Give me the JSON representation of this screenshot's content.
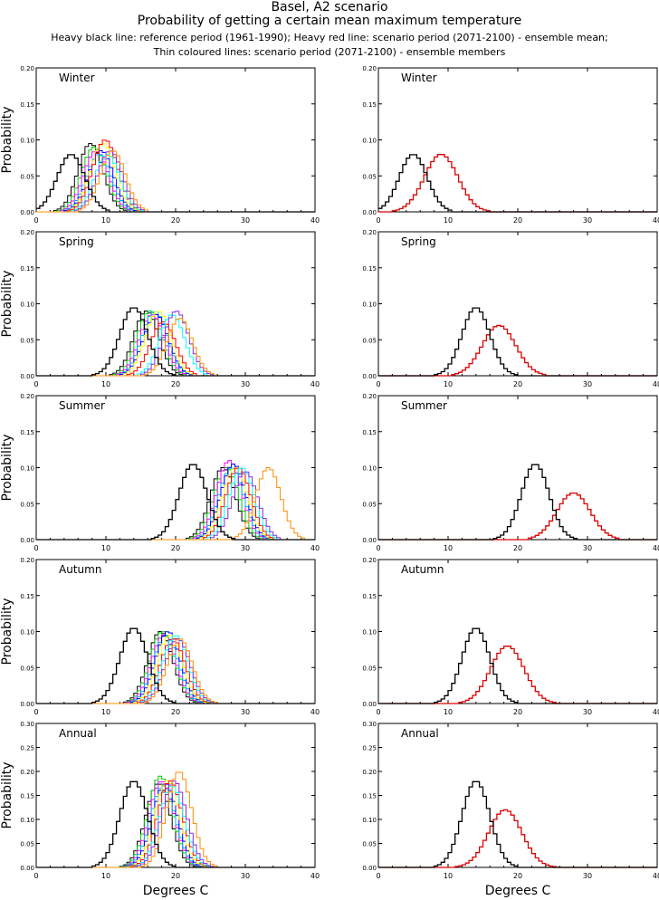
{
  "header": {
    "title": "Basel, A2 scenario",
    "subtitle": "Probability of getting a certain mean maximum temperature",
    "legend_line1": "Heavy black line: reference period (1961-1990); Heavy red line: scenario period (2071-2100) - ensemble mean;",
    "legend_line2": "Thin coloured lines: scenario period (2071-2100) - ensemble members"
  },
  "colors": {
    "reference": "#000000",
    "ensemble_mean": "#dd0000",
    "members": [
      "#000000",
      "#00cc00",
      "#ff00ff",
      "#00b0ff",
      "#0000ff",
      "#ffff00",
      "#ff0000",
      "#00ffff",
      "#8a2be2",
      "#ff8c00"
    ]
  },
  "chart_data": [
    {
      "type": "line",
      "panel": "ensemble members",
      "season": "Winter",
      "ylabel": "Probability",
      "xlim": [
        0,
        40
      ],
      "ylim": [
        0,
        0.2
      ],
      "reference_mean": 5.0,
      "reference_peak": 0.08,
      "scenario_mean": 9.0,
      "scenario_peak": 0.08,
      "members": [
        {
          "mean": 7.8,
          "peak": 0.095
        },
        {
          "mean": 8.3,
          "peak": 0.09
        },
        {
          "mean": 8.6,
          "peak": 0.085
        },
        {
          "mean": 9.0,
          "peak": 0.08
        },
        {
          "mean": 9.3,
          "peak": 0.085
        },
        {
          "mean": 9.6,
          "peak": 0.095
        },
        {
          "mean": 9.9,
          "peak": 0.1
        },
        {
          "mean": 10.2,
          "peak": 0.08
        },
        {
          "mean": 10.6,
          "peak": 0.085
        },
        {
          "mean": 11.0,
          "peak": 0.085
        }
      ]
    },
    {
      "type": "line",
      "panel": "ensemble mean",
      "season": "Winter",
      "ylabel": "",
      "xlim": [
        0,
        40
      ],
      "ylim": [
        0,
        0.2
      ],
      "reference_mean": 5.0,
      "reference_peak": 0.08,
      "scenario_mean": 9.0,
      "scenario_peak": 0.08
    },
    {
      "type": "line",
      "panel": "ensemble members",
      "season": "Spring",
      "ylabel": "Probability",
      "xlim": [
        0,
        40
      ],
      "ylim": [
        0,
        0.2
      ],
      "reference_mean": 14.0,
      "reference_peak": 0.095,
      "scenario_mean": 17.3,
      "scenario_peak": 0.07,
      "members": [
        {
          "mean": 15.8,
          "peak": 0.09
        },
        {
          "mean": 16.3,
          "peak": 0.09
        },
        {
          "mean": 16.6,
          "peak": 0.085
        },
        {
          "mean": 17.0,
          "peak": 0.09
        },
        {
          "mean": 17.2,
          "peak": 0.085
        },
        {
          "mean": 17.5,
          "peak": 0.09
        },
        {
          "mean": 18.2,
          "peak": 0.075
        },
        {
          "mean": 19.5,
          "peak": 0.085
        },
        {
          "mean": 20.1,
          "peak": 0.09
        },
        {
          "mean": 20.6,
          "peak": 0.08
        }
      ]
    },
    {
      "type": "line",
      "panel": "ensemble mean",
      "season": "Spring",
      "ylabel": "",
      "xlim": [
        0,
        40
      ],
      "ylim": [
        0,
        0.2
      ],
      "reference_mean": 14.0,
      "reference_peak": 0.095,
      "scenario_mean": 17.3,
      "scenario_peak": 0.07
    },
    {
      "type": "line",
      "panel": "ensemble members",
      "season": "Summer",
      "ylabel": "Probability",
      "xlim": [
        0,
        40
      ],
      "ylim": [
        0,
        0.2
      ],
      "reference_mean": 22.5,
      "reference_peak": 0.105,
      "scenario_mean": 28.0,
      "scenario_peak": 0.065,
      "members": [
        {
          "mean": 26.8,
          "peak": 0.1
        },
        {
          "mean": 27.3,
          "peak": 0.1
        },
        {
          "mean": 27.7,
          "peak": 0.11
        },
        {
          "mean": 28.0,
          "peak": 0.1
        },
        {
          "mean": 28.3,
          "peak": 0.105
        },
        {
          "mean": 28.6,
          "peak": 0.1
        },
        {
          "mean": 29.0,
          "peak": 0.1
        },
        {
          "mean": 29.5,
          "peak": 0.1
        },
        {
          "mean": 30.0,
          "peak": 0.095
        },
        {
          "mean": 33.3,
          "peak": 0.1
        }
      ]
    },
    {
      "type": "line",
      "panel": "ensemble mean",
      "season": "Summer",
      "ylabel": "",
      "xlim": [
        0,
        40
      ],
      "ylim": [
        0,
        0.2
      ],
      "reference_mean": 22.5,
      "reference_peak": 0.105,
      "scenario_mean": 28.0,
      "scenario_peak": 0.065
    },
    {
      "type": "line",
      "panel": "ensemble members",
      "season": "Autumn",
      "ylabel": "Probability",
      "xlim": [
        0,
        40
      ],
      "ylim": [
        0,
        0.2
      ],
      "reference_mean": 14.0,
      "reference_peak": 0.105,
      "scenario_mean": 18.5,
      "scenario_peak": 0.08,
      "members": [
        {
          "mean": 17.8,
          "peak": 0.1
        },
        {
          "mean": 18.1,
          "peak": 0.1
        },
        {
          "mean": 18.3,
          "peak": 0.095
        },
        {
          "mean": 18.6,
          "peak": 0.095
        },
        {
          "mean": 18.9,
          "peak": 0.1
        },
        {
          "mean": 19.2,
          "peak": 0.095
        },
        {
          "mean": 19.6,
          "peak": 0.09
        },
        {
          "mean": 20.0,
          "peak": 0.095
        },
        {
          "mean": 20.3,
          "peak": 0.09
        },
        {
          "mean": 20.6,
          "peak": 0.09
        }
      ]
    },
    {
      "type": "line",
      "panel": "ensemble mean",
      "season": "Autumn",
      "ylabel": "",
      "xlim": [
        0,
        40
      ],
      "ylim": [
        0,
        0.2
      ],
      "reference_mean": 14.0,
      "reference_peak": 0.105,
      "scenario_mean": 18.5,
      "scenario_peak": 0.08
    },
    {
      "type": "line",
      "panel": "ensemble members",
      "season": "Annual",
      "ylabel": "Probability",
      "xlim": [
        0,
        40
      ],
      "ylim": [
        0,
        0.3
      ],
      "reference_mean": 14.0,
      "reference_peak": 0.18,
      "scenario_mean": 18.2,
      "scenario_peak": 0.12,
      "members": [
        {
          "mean": 17.5,
          "peak": 0.175
        },
        {
          "mean": 17.8,
          "peak": 0.19
        },
        {
          "mean": 18.0,
          "peak": 0.18
        },
        {
          "mean": 18.2,
          "peak": 0.17
        },
        {
          "mean": 18.5,
          "peak": 0.175
        },
        {
          "mean": 18.8,
          "peak": 0.18
        },
        {
          "mean": 19.2,
          "peak": 0.18
        },
        {
          "mean": 19.5,
          "peak": 0.17
        },
        {
          "mean": 19.8,
          "peak": 0.18
        },
        {
          "mean": 20.5,
          "peak": 0.2
        }
      ]
    },
    {
      "type": "line",
      "panel": "ensemble mean",
      "season": "Annual",
      "ylabel": "",
      "xlim": [
        0,
        40
      ],
      "ylim": [
        0,
        0.3
      ],
      "reference_mean": 14.0,
      "reference_peak": 0.18,
      "scenario_mean": 18.2,
      "scenario_peak": 0.12
    }
  ],
  "axes": {
    "xlabel": "Degrees C",
    "xticks": [
      "0",
      "10",
      "20",
      "30",
      "40"
    ],
    "yticks_standard": [
      "0.00",
      "0.05",
      "0.10",
      "0.15",
      "0.20"
    ],
    "yticks_annual": [
      "0.00",
      "0.05",
      "0.10",
      "0.15",
      "0.20",
      "0.25",
      "0.30"
    ]
  }
}
